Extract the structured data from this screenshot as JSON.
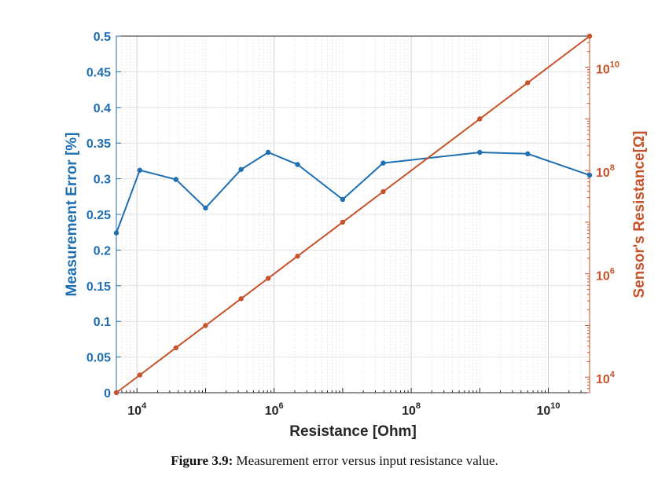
{
  "chart_data": {
    "type": "line",
    "title": "",
    "xlabel": "Resistance [Ohm]",
    "xscale": "log",
    "xlim": [
      5000,
      40000000000
    ],
    "xticks": [
      10000,
      1000000,
      100000000,
      10000000000
    ],
    "xtick_labels": [
      {
        "base": "10",
        "exp": "4"
      },
      {
        "base": "10",
        "exp": "6"
      },
      {
        "base": "10",
        "exp": "8"
      },
      {
        "base": "10",
        "exp": "10"
      }
    ],
    "grid": true,
    "left_axis": {
      "label": "Measurement Error [%]",
      "color": "#1f6fb2",
      "ylim": [
        0,
        0.5
      ],
      "ticks": [
        0,
        0.05,
        0.1,
        0.15,
        0.2,
        0.25,
        0.3,
        0.35,
        0.4,
        0.45,
        0.5
      ],
      "tick_labels": [
        "0",
        "0.05",
        "0.1",
        "0.15",
        "0.2",
        "0.25",
        "0.3",
        "0.35",
        "0.4",
        "0.45",
        "0.5"
      ]
    },
    "right_axis": {
      "label": "Sensor's Resistance[Ω]",
      "color": "#c8522a",
      "scale": "log",
      "ylim": [
        5000,
        40000000000
      ],
      "ticks": [
        10000,
        1000000,
        100000000,
        10000000000
      ],
      "tick_labels": [
        {
          "base": "10",
          "exp": "4"
        },
        {
          "base": "10",
          "exp": "6"
        },
        {
          "base": "10",
          "exp": "8"
        },
        {
          "base": "10",
          "exp": "10"
        }
      ]
    },
    "series": [
      {
        "axis": "left",
        "color": "#1f6fb2",
        "x": [
          5000,
          11000,
          37000,
          100000,
          330000,
          820000,
          2200000,
          10000000,
          39000000,
          1000000000,
          5000000000,
          40000000000
        ],
        "y": [
          0.224,
          0.312,
          0.299,
          0.259,
          0.313,
          0.337,
          0.32,
          0.271,
          0.322,
          0.337,
          0.335,
          0.305
        ]
      },
      {
        "axis": "right",
        "color": "#c8522a",
        "x": [
          5000,
          11000,
          37000,
          100000,
          330000,
          820000,
          2200000,
          10000000,
          39000000,
          1000000000,
          5000000000,
          40000000000
        ],
        "y": [
          5000,
          11000,
          37000,
          100000,
          330000,
          820000,
          2200000,
          10000000,
          39000000,
          1000000000,
          5000000000,
          40000000000
        ]
      }
    ]
  },
  "caption": {
    "label": "Figure 3.9:",
    "text": " Measurement error versus input resistance value."
  }
}
